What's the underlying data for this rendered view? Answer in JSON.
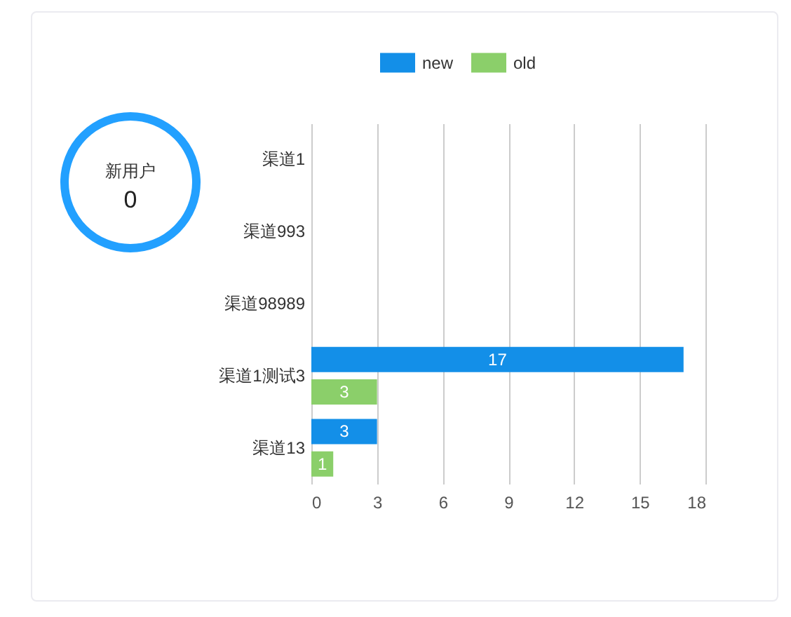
{
  "chart_data": [
    {
      "type": "other",
      "title": "新用户",
      "annotations": [
        "0"
      ]
    },
    {
      "type": "bar",
      "orientation": "horizontal",
      "categories": [
        "渠道1",
        "渠道993",
        "渠道98989",
        "渠道1测试3",
        "渠道13"
      ],
      "series": [
        {
          "name": "new",
          "color": "#138fe8",
          "values": [
            0,
            0,
            0,
            17,
            3
          ],
          "value_labels": [
            null,
            null,
            null,
            "17",
            "3"
          ]
        },
        {
          "name": "old",
          "color": "#8bcf6a",
          "values": [
            0,
            0,
            0,
            3,
            1
          ],
          "value_labels": [
            null,
            null,
            null,
            "3",
            "1"
          ]
        }
      ],
      "xlim": [
        0,
        18
      ],
      "xticks": [
        0,
        3,
        6,
        9,
        12,
        15,
        18
      ],
      "grid": "x",
      "legend": "top"
    }
  ]
}
